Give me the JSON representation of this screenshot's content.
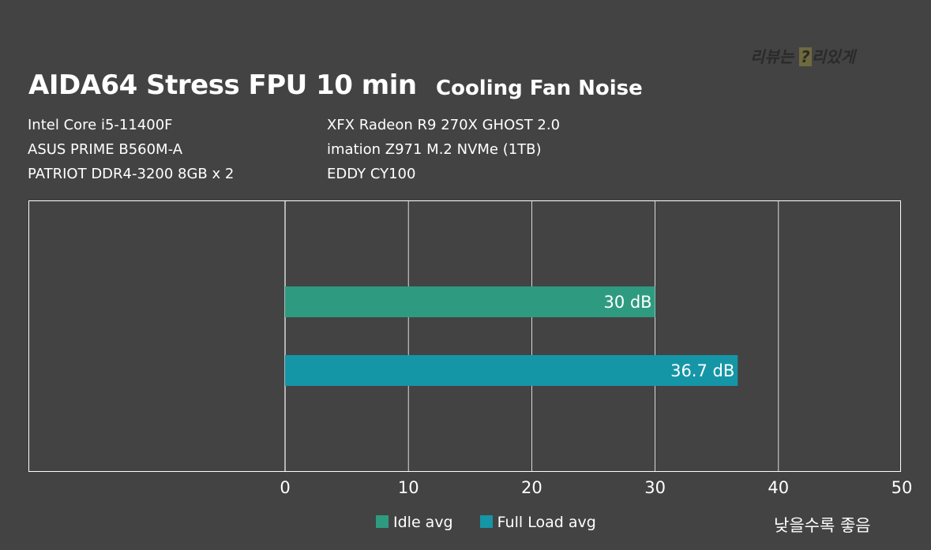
{
  "header": {
    "title": "AIDA64 Stress FPU 10 min",
    "subtitle": "Cooling Fan Noise",
    "watermark_text": "리뷰는 ",
    "watermark_mark": "?",
    "watermark_tail": "리있게"
  },
  "specs": {
    "left": [
      "Intel Core i5-11400F",
      "ASUS PRIME B560M-A",
      "PATRIOT DDR4-3200 8GB x 2"
    ],
    "right": [
      "XFX Radeon R9 270X GHOST 2.0",
      "imation Z971 M.2 NVMe (1TB)",
      "EDDY CY100"
    ]
  },
  "note": "낮을수록 좋음",
  "colors": {
    "background": "#434343",
    "idle": "#2e9b81",
    "full_load": "#1596a7",
    "grid": "#ffffff"
  },
  "chart_data": {
    "type": "bar",
    "orientation": "horizontal",
    "title": "AIDA64 Stress FPU 10 min",
    "subtitle": "Cooling Fan Noise",
    "series": [
      {
        "name": "Idle avg",
        "values": [
          30
        ],
        "label": "30 dB",
        "color": "#2e9b81"
      },
      {
        "name": "Full Load avg",
        "values": [
          36.7
        ],
        "label": "36.7 dB",
        "color": "#1596a7"
      }
    ],
    "xlim": [
      0,
      50
    ],
    "xticks": [
      "0",
      "10",
      "20",
      "30",
      "40",
      "50"
    ],
    "xtick_values": [
      0,
      10,
      20,
      30,
      40,
      50
    ],
    "grid": true,
    "legend": "bottom-center"
  }
}
